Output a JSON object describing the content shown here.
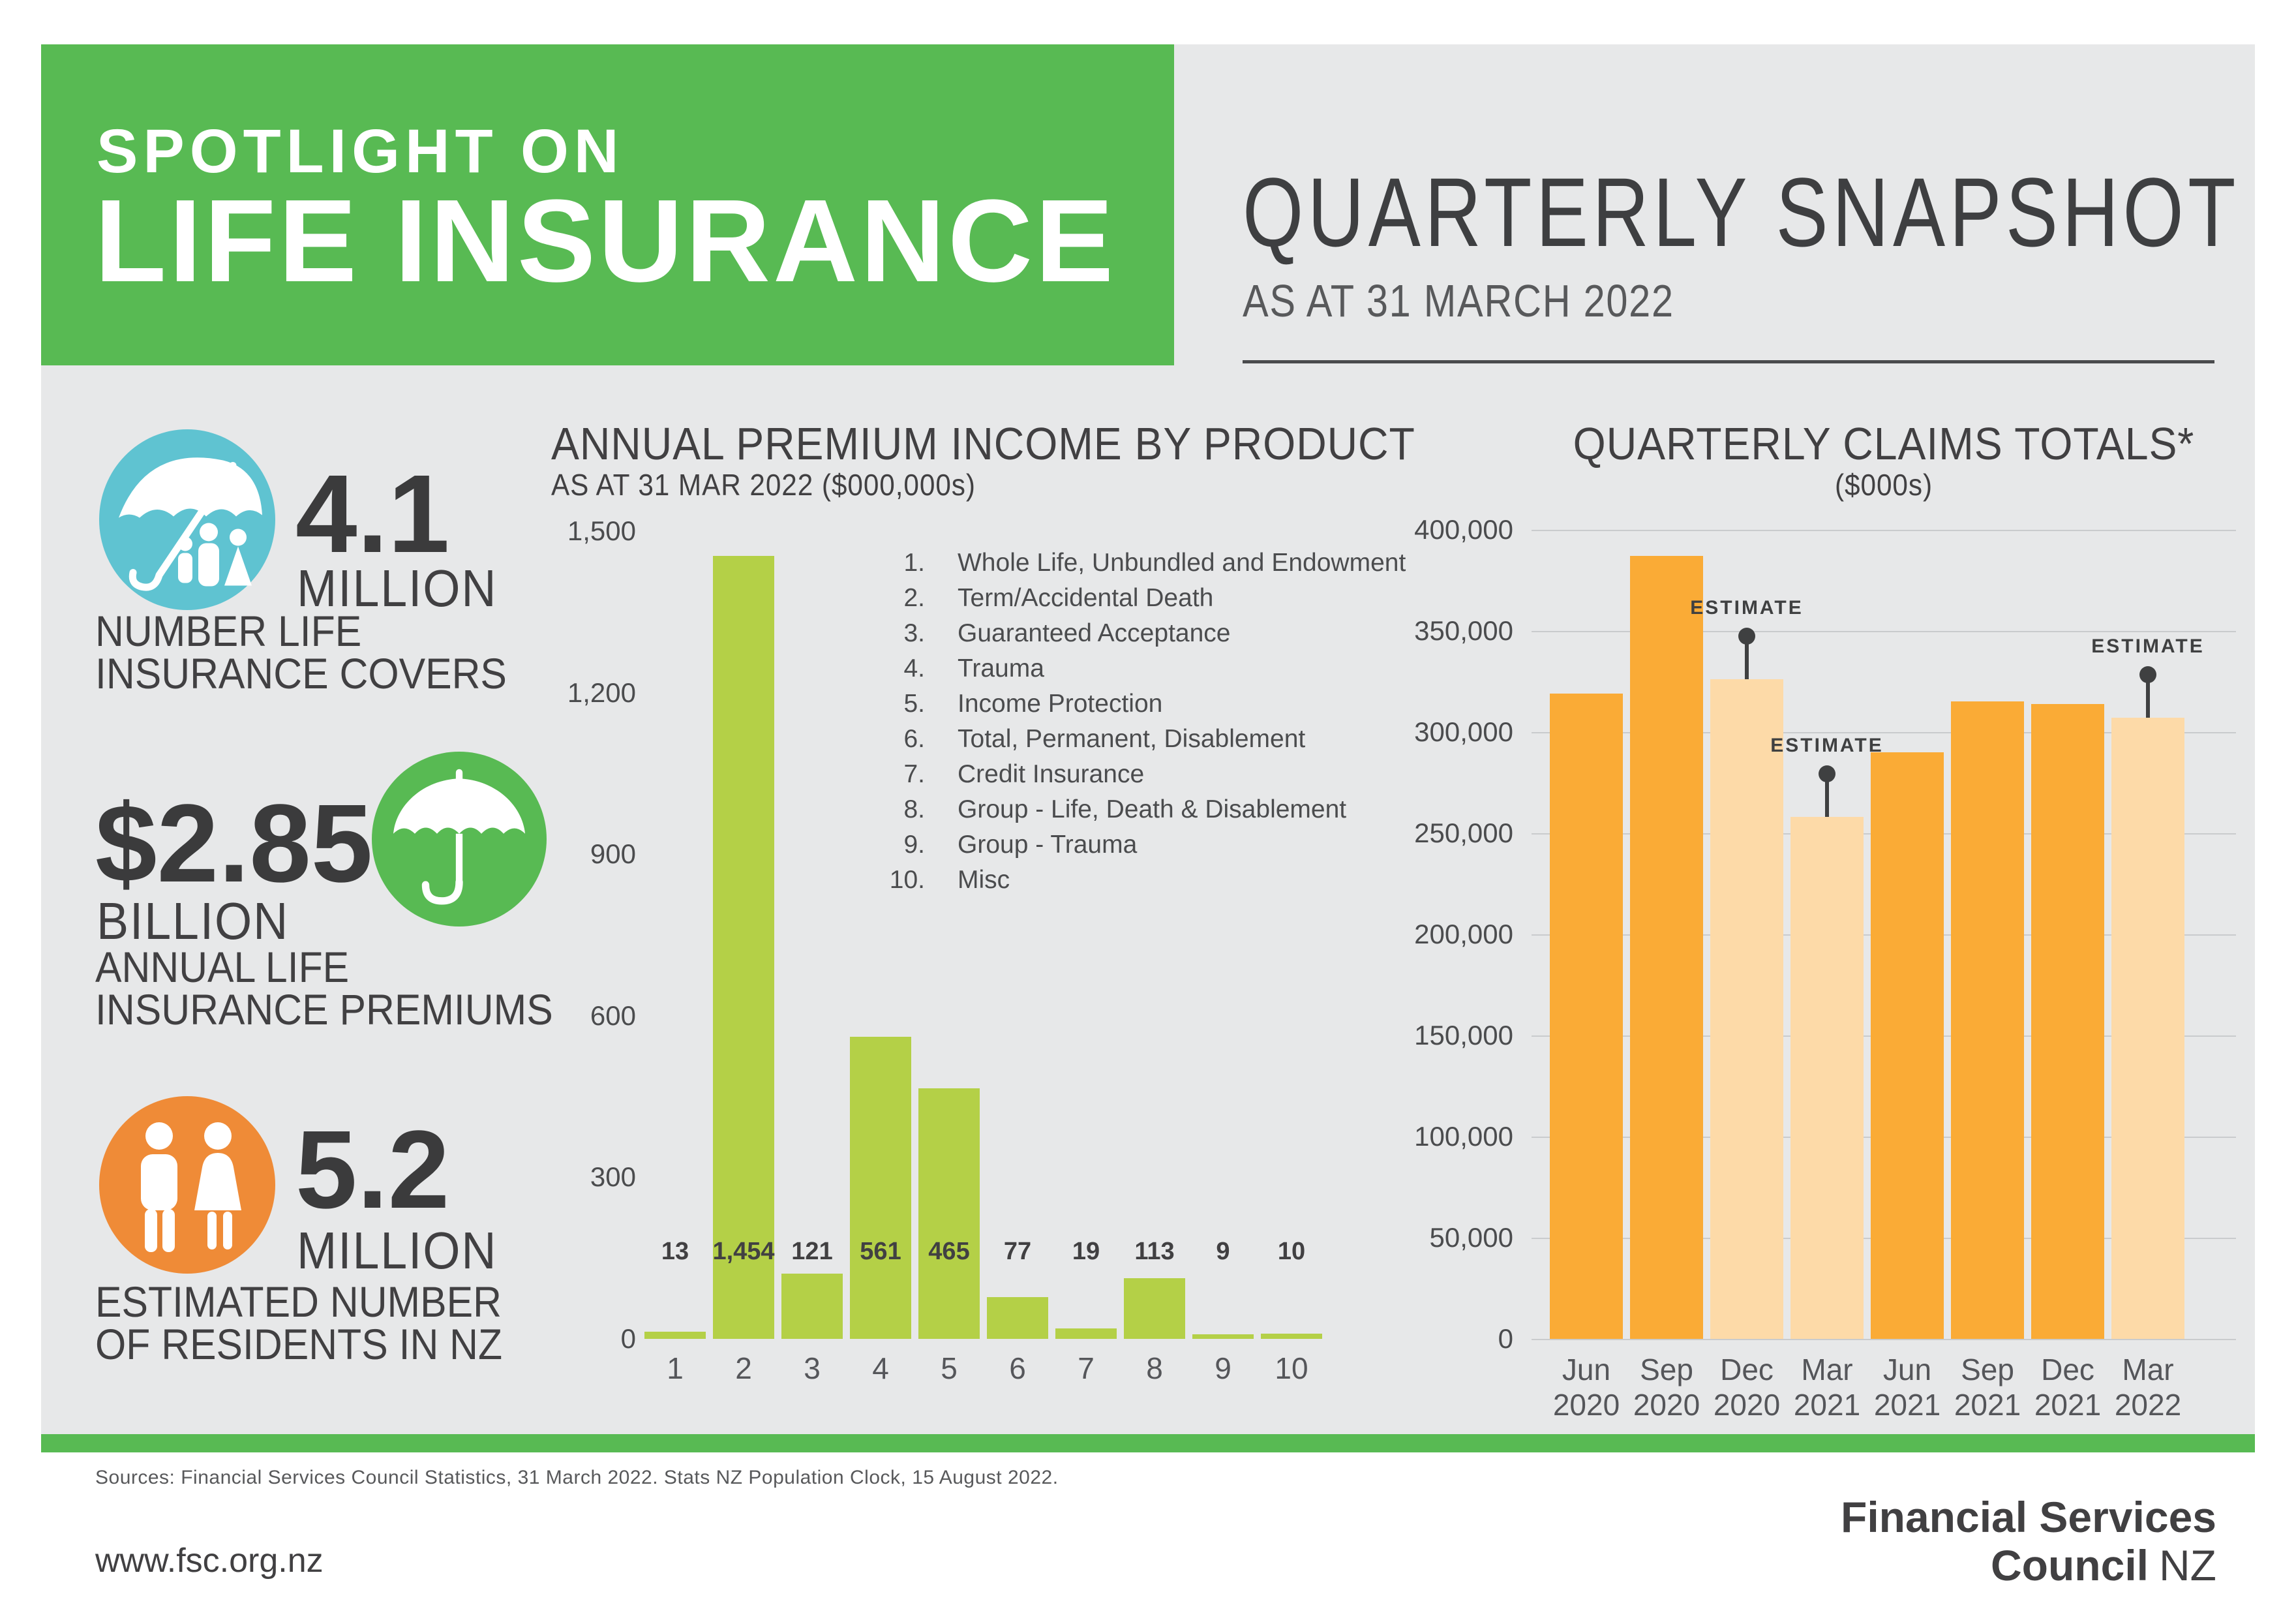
{
  "colors": {
    "brand_green": "#58BA53",
    "panel_gray": "#E7E8E9",
    "charcoal": "#414042",
    "gray_text": "#58595B",
    "teal_circle": "#5FC3D1",
    "orange_circle": "#EF8B37",
    "premium_bar": "#B4D047",
    "claims_bar": "#FAAB36",
    "claims_estimate_bar": "#FDDAA8"
  },
  "header": {
    "kicker": "SPOTLIGHT ON",
    "title": "LIFE INSURANCE",
    "snapshot_title": "QUARTERLY SNAPSHOT",
    "snapshot_date": "AS AT 31 MARCH 2022"
  },
  "stats": [
    {
      "value": "4.1",
      "unit": "MILLION",
      "lines": [
        "NUMBER LIFE",
        "INSURANCE COVERS"
      ],
      "icon": "umbrella-family-icon",
      "circle_color": "#5FC3D1"
    },
    {
      "value": "$2.85",
      "unit": "BILLION",
      "lines": [
        "ANNUAL LIFE",
        "INSURANCE PREMIUMS"
      ],
      "icon": "umbrella-icon",
      "circle_color": "#58BA53"
    },
    {
      "value": "5.2",
      "unit": "MILLION",
      "lines": [
        "ESTIMATED NUMBER",
        "OF RESIDENTS IN NZ"
      ],
      "icon": "man-woman-icon",
      "circle_color": "#EF8B37"
    }
  ],
  "chart_data": [
    {
      "type": "bar",
      "title": "ANNUAL PREMIUM INCOME BY PRODUCT",
      "subtitle": "AS AT 31 MAR 2022 ($000,000s)",
      "categories": [
        "1",
        "2",
        "3",
        "4",
        "5",
        "6",
        "7",
        "8",
        "9",
        "10"
      ],
      "values": [
        13,
        1454,
        121,
        561,
        465,
        77,
        19,
        113,
        9,
        10
      ],
      "value_labels": [
        "13",
        "1,454",
        "121",
        "561",
        "465",
        "77",
        "19",
        "113",
        "9",
        "10"
      ],
      "ylim": [
        0,
        1500
      ],
      "ytick_labels": [
        "1,500",
        "1,200",
        "900",
        "600",
        "300",
        "0"
      ],
      "grid": false,
      "bar_color": "#B4D047",
      "legend_position": "right",
      "legend": [
        "Whole Life, Unbundled and Endowment",
        "Term/Accidental Death",
        "Guaranteed Acceptance",
        "Trauma",
        "Income Protection",
        "Total, Permanent, Disablement",
        "Credit Insurance",
        "Group - Life, Death & Disablement",
        "Group - Trauma",
        "Misc"
      ]
    },
    {
      "type": "bar",
      "title": "QUARTERLY CLAIMS TOTALS*",
      "subtitle": "($000s)",
      "categories": [
        [
          "Jun",
          "2020"
        ],
        [
          "Sep",
          "2020"
        ],
        [
          "Dec",
          "2020"
        ],
        [
          "Mar",
          "2021"
        ],
        [
          "Jun",
          "2021"
        ],
        [
          "Sep",
          "2021"
        ],
        [
          "Dec",
          "2021"
        ],
        [
          "Mar",
          "2022"
        ]
      ],
      "values": [
        319000,
        387000,
        326000,
        258000,
        290000,
        315000,
        314000,
        307000
      ],
      "estimate": [
        false,
        false,
        true,
        true,
        false,
        false,
        false,
        true
      ],
      "estimate_label": "ESTIMATE",
      "ylim": [
        0,
        400000
      ],
      "ytick_labels": [
        "400,000",
        "350,000",
        "300,000",
        "250,000",
        "200,000",
        "150,000",
        "100,000",
        "50,000",
        "0"
      ],
      "grid": true,
      "bar_color": "#FAAB36",
      "estimate_bar_color": "#FDDAA8"
    }
  ],
  "footer": {
    "sources": "Sources: Financial Services Council Statistics, 31 March 2022. Stats NZ Population Clock, 15 August 2022.",
    "website": "www.fsc.org.nz",
    "logo_line1": "Financial Services",
    "logo_line2_bold": "Council",
    "logo_line2_regular": "NZ"
  }
}
